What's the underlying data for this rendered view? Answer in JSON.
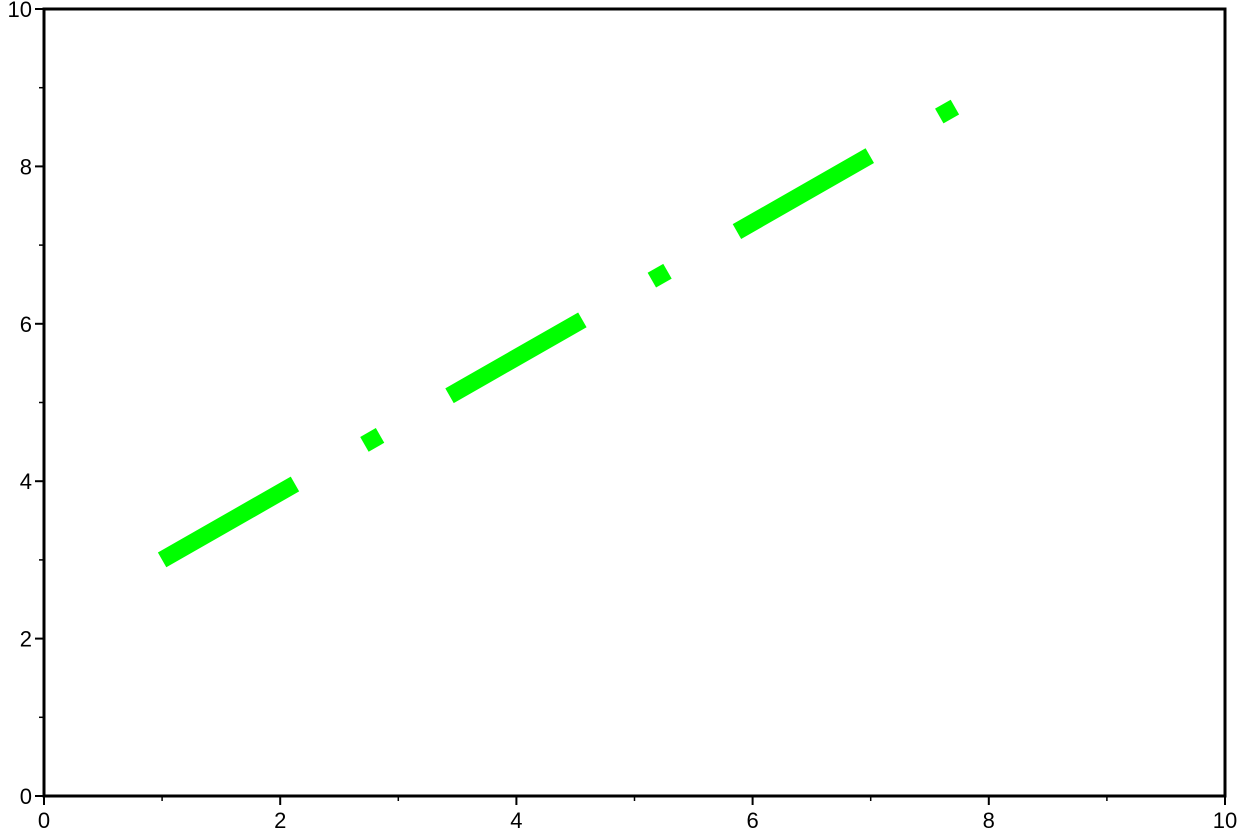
{
  "chart_data": {
    "type": "line",
    "title": "",
    "xlabel": "",
    "ylabel": "",
    "xlim": [
      0,
      10
    ],
    "ylim": [
      0,
      10
    ],
    "grid": false,
    "x_ticks": [
      "0",
      "2",
      "4",
      "6",
      "8",
      "10"
    ],
    "y_ticks": [
      "0",
      "2",
      "4",
      "6",
      "8",
      "10"
    ],
    "x_minor_step": 1,
    "y_minor_step": 1,
    "series": [
      {
        "x": [
          1,
          8
        ],
        "y": [
          3,
          9
        ],
        "color": "#00ff00",
        "line_style": "dash-dot"
      }
    ]
  }
}
